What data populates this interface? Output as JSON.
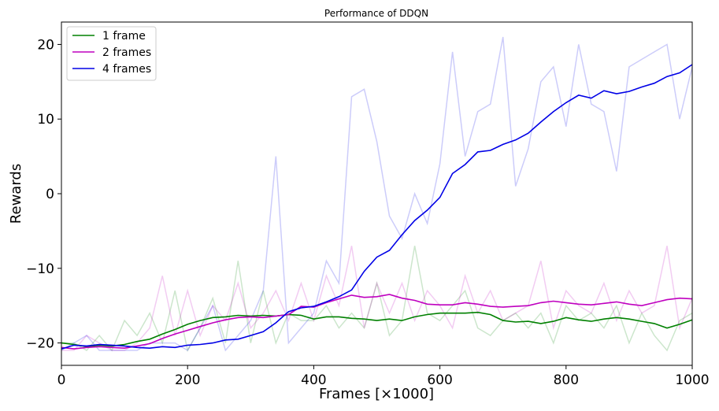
{
  "chart_data": {
    "type": "line",
    "title": "Performance of DDQN",
    "xlabel": "Frames [×1000]",
    "ylabel": "Rewards",
    "xlim": [
      0,
      1000
    ],
    "ylim": [
      -23,
      23
    ],
    "xticks": [
      0,
      200,
      400,
      600,
      800,
      1000
    ],
    "xtick_labels": [
      "0",
      "200",
      "400",
      "600",
      "800",
      "1000"
    ],
    "yticks": [
      -20,
      -10,
      0,
      10,
      20
    ],
    "ytick_labels": [
      "−20",
      "−10",
      "0",
      "10",
      "20"
    ],
    "grid": false,
    "legend_position": "top-left",
    "series": [
      {
        "name": "1 frame",
        "color": "#008000",
        "x": [
          0,
          20,
          40,
          60,
          80,
          100,
          120,
          140,
          160,
          180,
          200,
          220,
          240,
          260,
          280,
          300,
          320,
          340,
          360,
          380,
          400,
          420,
          440,
          460,
          480,
          500,
          520,
          540,
          560,
          580,
          600,
          620,
          640,
          660,
          680,
          700,
          720,
          740,
          760,
          780,
          800,
          820,
          840,
          860,
          880,
          900,
          920,
          940,
          960,
          980,
          1000
        ],
        "smoothed": [
          -20,
          -20.2,
          -20.5,
          -20.3,
          -20.4,
          -20.2,
          -19.8,
          -19.5,
          -18.8,
          -18.2,
          -17.5,
          -17,
          -16.6,
          -16.5,
          -16.3,
          -16.4,
          -16.3,
          -16.4,
          -16.2,
          -16.3,
          -16.8,
          -16.5,
          -16.5,
          -16.7,
          -16.8,
          -17,
          -16.8,
          -17,
          -16.5,
          -16.2,
          -16,
          -16,
          -16,
          -15.9,
          -16.2,
          -17,
          -17.2,
          -17.1,
          -17.4,
          -17.1,
          -16.6,
          -16.9,
          -17.1,
          -16.8,
          -16.6,
          -16.8,
          -17.1,
          -17.4,
          -18,
          -17.5,
          -16.9
        ],
        "raw": [
          -20,
          -20,
          -21,
          -19,
          -21,
          -17,
          -19,
          -16,
          -20,
          -13,
          -21,
          -18,
          -14,
          -20,
          -9,
          -20,
          -13,
          -20,
          -16,
          -17,
          -17,
          -15,
          -18,
          -16,
          -18,
          -12,
          -19,
          -17,
          -7,
          -16,
          -17,
          -15,
          -13,
          -18,
          -19,
          -17,
          -16,
          -18,
          -16,
          -20,
          -15,
          -17,
          -16,
          -18,
          -15,
          -20,
          -16,
          -19,
          -21,
          -17,
          -16
        ]
      },
      {
        "name": "2 frames",
        "color": "#bf00bf",
        "x": [
          0,
          20,
          40,
          60,
          80,
          100,
          120,
          140,
          160,
          180,
          200,
          220,
          240,
          260,
          280,
          300,
          320,
          340,
          360,
          380,
          400,
          420,
          440,
          460,
          480,
          500,
          520,
          540,
          560,
          580,
          600,
          620,
          640,
          660,
          680,
          700,
          720,
          740,
          760,
          780,
          800,
          820,
          840,
          860,
          880,
          900,
          920,
          940,
          960,
          980,
          1000
        ],
        "smoothed": [
          -20.6,
          -20.8,
          -20.6,
          -20.5,
          -20.6,
          -20.7,
          -20.4,
          -20.1,
          -19.4,
          -18.8,
          -18.3,
          -17.8,
          -17.3,
          -16.9,
          -16.6,
          -16.5,
          -16.6,
          -16.4,
          -16.2,
          -15.1,
          -15.2,
          -14.6,
          -14.1,
          -13.6,
          -13.9,
          -13.8,
          -13.5,
          -14.0,
          -14.3,
          -14.8,
          -14.9,
          -14.9,
          -14.6,
          -14.8,
          -15.1,
          -15.2,
          -15.1,
          -15.0,
          -14.6,
          -14.4,
          -14.6,
          -14.8,
          -14.9,
          -14.7,
          -14.5,
          -14.8,
          -15,
          -14.6,
          -14.2,
          -14.0,
          -14.1
        ],
        "raw": [
          -21,
          -21,
          -19,
          -20,
          -21,
          -21,
          -20,
          -18,
          -11,
          -19,
          -13,
          -19,
          -15,
          -17,
          -12,
          -18,
          -16,
          -13,
          -17,
          -12,
          -17,
          -11,
          -15,
          -7,
          -18,
          -12,
          -16,
          -12,
          -17,
          -13,
          -15,
          -18,
          -11,
          -16,
          -13,
          -17,
          -16,
          -15,
          -9,
          -18,
          -13,
          -15,
          -16,
          -12,
          -17,
          -13,
          -16,
          -15,
          -7,
          -18,
          -14
        ]
      },
      {
        "name": "4 frames",
        "color": "#0000e6",
        "x": [
          0,
          20,
          40,
          60,
          80,
          100,
          120,
          140,
          160,
          180,
          200,
          220,
          240,
          260,
          280,
          300,
          320,
          340,
          360,
          380,
          400,
          420,
          440,
          460,
          480,
          500,
          520,
          540,
          560,
          580,
          600,
          620,
          640,
          660,
          680,
          700,
          720,
          740,
          760,
          780,
          800,
          820,
          840,
          860,
          880,
          900,
          920,
          940,
          960,
          980,
          1000
        ],
        "smoothed": [
          -20.8,
          -20.3,
          -20.4,
          -20.2,
          -20.3,
          -20.4,
          -20.6,
          -20.7,
          -20.5,
          -20.6,
          -20.3,
          -20.2,
          -20.0,
          -19.6,
          -19.5,
          -19.0,
          -18.5,
          -17.3,
          -15.8,
          -15.3,
          -15.1,
          -14.5,
          -13.8,
          -12.9,
          -10.4,
          -8.5,
          -7.6,
          -5.5,
          -3.6,
          -2.2,
          -0.5,
          2.7,
          3.9,
          5.6,
          5.8,
          6.6,
          7.2,
          8.1,
          9.6,
          11.0,
          12.2,
          13.2,
          12.8,
          13.8,
          13.4,
          13.7,
          14.3,
          14.8,
          15.7,
          16.2,
          17.3
        ],
        "raw": [
          -21,
          -20,
          -19,
          -21,
          -21,
          -21,
          -21,
          -20,
          -20,
          -20,
          -21,
          -18,
          -15,
          -21,
          -19,
          -17,
          -13,
          5,
          -20,
          -18,
          -16,
          -9,
          -12,
          13,
          14,
          7,
          -3,
          -6,
          0,
          -4,
          4,
          19,
          5,
          11,
          12,
          21,
          1,
          6,
          15,
          17,
          9,
          20,
          12,
          11,
          3,
          17,
          18,
          19,
          20,
          10,
          17
        ]
      }
    ]
  }
}
